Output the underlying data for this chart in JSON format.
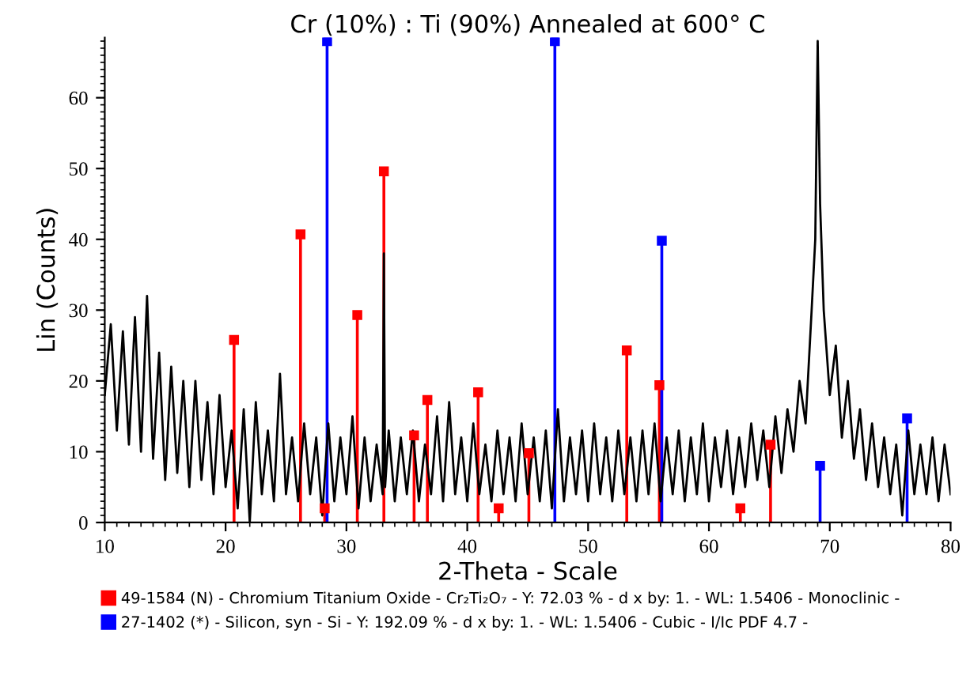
{
  "chart_data": {
    "type": "line",
    "title": "Cr (10%) : Ti (90%) Annealed at 600° C",
    "xlabel": "2-Theta - Scale",
    "ylabel": "Lin (Counts)",
    "xlim": [
      10,
      80
    ],
    "ylim": [
      0,
      68.5
    ],
    "xticks": [
      10,
      20,
      30,
      40,
      50,
      60,
      70,
      80
    ],
    "yticks": [
      0,
      10,
      20,
      30,
      40,
      50,
      60
    ],
    "grid": false,
    "legend": "bottom",
    "marker": "none",
    "line_style": "solid",
    "series": [
      {
        "color": "#000000",
        "x": [
          10,
          10.5,
          11,
          11.5,
          12,
          12.5,
          13,
          13.5,
          14,
          14.5,
          15,
          15.5,
          16,
          16.5,
          17,
          17.5,
          18,
          18.5,
          19,
          19.5,
          20,
          20.5,
          21,
          21.5,
          22,
          22.5,
          23,
          23.5,
          24,
          24.5,
          25,
          25.5,
          26,
          26.5,
          27,
          27.5,
          28,
          28.5,
          29,
          29.5,
          30,
          30.5,
          31,
          31.5,
          32,
          32.5,
          33,
          33.1,
          33.2,
          33.5,
          34,
          34.5,
          35,
          35.5,
          36,
          36.5,
          37,
          37.5,
          38,
          38.5,
          39,
          39.5,
          40,
          40.5,
          41,
          41.5,
          42,
          42.5,
          43,
          43.5,
          44,
          44.5,
          45,
          45.5,
          46,
          46.5,
          47,
          47.5,
          48,
          48.5,
          49,
          49.5,
          50,
          50.5,
          51,
          51.5,
          52,
          52.5,
          53,
          53.5,
          54,
          54.5,
          55,
          55.5,
          56,
          56.5,
          57,
          57.5,
          58,
          58.5,
          59,
          59.5,
          60,
          60.5,
          61,
          61.5,
          62,
          62.5,
          63,
          63.5,
          64,
          64.5,
          65,
          65.5,
          66,
          66.5,
          67,
          67.5,
          68,
          68.5,
          68.8,
          69,
          69.2,
          69.5,
          70,
          70.5,
          71,
          71.5,
          72,
          72.5,
          73,
          73.5,
          74,
          74.5,
          75,
          75.5,
          76,
          76.5,
          77,
          77.5,
          78,
          78.5,
          79,
          79.5,
          80
        ],
        "values": [
          18,
          28,
          13,
          27,
          11,
          29,
          10,
          32,
          9,
          24,
          6,
          22,
          7,
          20,
          5,
          20,
          6,
          17,
          4,
          18,
          5,
          13,
          2,
          16,
          0,
          17,
          4,
          13,
          3,
          21,
          4,
          12,
          3,
          14,
          4,
          12,
          1,
          14,
          3,
          12,
          4,
          15,
          2,
          12,
          3,
          11,
          4,
          38,
          5,
          13,
          3,
          12,
          4,
          13,
          3,
          11,
          4,
          15,
          3,
          17,
          4,
          12,
          3,
          14,
          4,
          11,
          3,
          13,
          4,
          12,
          3,
          14,
          4,
          12,
          3,
          13,
          2,
          16,
          3,
          12,
          4,
          13,
          3,
          14,
          4,
          12,
          3,
          13,
          4,
          12,
          3,
          13,
          4,
          14,
          3,
          12,
          4,
          13,
          3,
          12,
          4,
          14,
          3,
          12,
          5,
          13,
          4,
          12,
          5,
          14,
          6,
          13,
          5,
          15,
          7,
          16,
          10,
          20,
          14,
          30,
          40,
          68,
          45,
          30,
          18,
          25,
          12,
          20,
          9,
          16,
          6,
          14,
          5,
          12,
          4,
          11,
          1,
          13,
          4,
          11,
          4,
          12,
          3,
          11,
          4
        ]
      },
      {
        "type": "lollipop",
        "name": "49-1584 (N) - Chromium Titanium Oxide - Cr₂Ti₂O₇ - Y: 72.03 % - d x by: 1. - WL: 1.5406 - Monoclinic -",
        "color": "#ff0000",
        "marker": "square",
        "x": [
          20.7,
          26.2,
          28.2,
          30.9,
          33.1,
          35.6,
          36.7,
          40.9,
          42.6,
          45.1,
          53.2,
          55.9,
          62.6,
          65.1
        ],
        "values": [
          25.8,
          40.7,
          2,
          29.3,
          49.6,
          12.3,
          17.3,
          18.4,
          2,
          9.8,
          24.3,
          19.4,
          2,
          11
        ]
      },
      {
        "type": "lollipop",
        "name": "27-1402 (*) - Silicon, syn - Si - Y: 192.09 % - d x by: 1. - WL: 1.5406 - Cubic - I/Ic PDF 4.7 -",
        "color": "#0000ff",
        "marker": "square",
        "x": [
          28.4,
          47.25,
          56.1,
          69.2,
          76.4
        ],
        "values": [
          68,
          68,
          39.8,
          8.0,
          14.7
        ]
      }
    ]
  }
}
